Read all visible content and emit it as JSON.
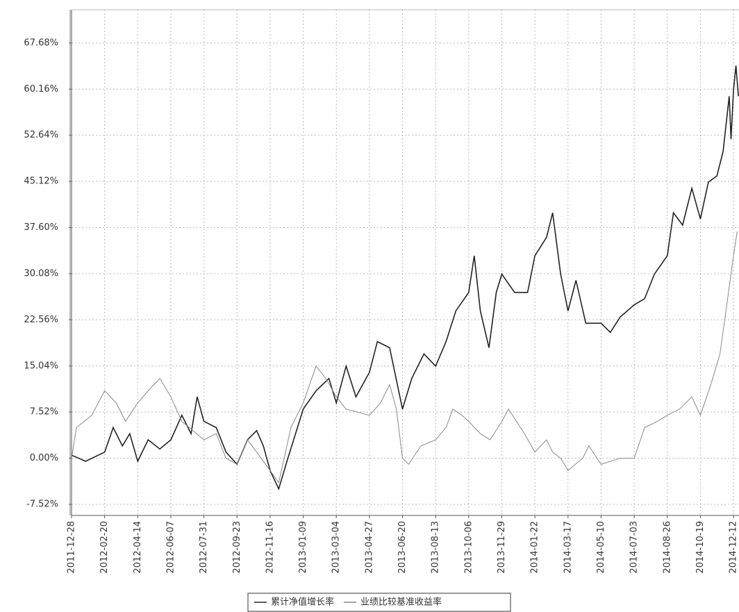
{
  "chart_data": {
    "type": "line",
    "xlim": [
      "2011-12-28",
      "2014-12-21"
    ],
    "xticks": [
      "2011-12-28",
      "2012-02-20",
      "2012-04-14",
      "2012-06-07",
      "2012-07-31",
      "2012-09-23",
      "2012-11-16",
      "2013-01-09",
      "2013-03-04",
      "2013-04-27",
      "2013-06-20",
      "2013-08-13",
      "2013-10-06",
      "2013-11-29",
      "2014-01-22",
      "2014-03-17",
      "2014-05-10",
      "2014-07-03",
      "2014-08-26",
      "2014-10-19",
      "2014-12-12"
    ],
    "ylim": [
      -9.33,
      73.1
    ],
    "yticks": [
      {
        "value": -7.52,
        "label": "-7.52%"
      },
      {
        "value": 0,
        "label": "0.00%"
      },
      {
        "value": 7.52,
        "label": "7.52%"
      },
      {
        "value": 15.04,
        "label": "15.04%"
      },
      {
        "value": 22.56,
        "label": "22.56%"
      },
      {
        "value": 30.08,
        "label": "30.08%"
      },
      {
        "value": 37.6,
        "label": "37.60%"
      },
      {
        "value": 45.12,
        "label": "45.12%"
      },
      {
        "value": 52.64,
        "label": "52.64%"
      },
      {
        "value": 60.16,
        "label": "60.16%"
      },
      {
        "value": 67.68,
        "label": "67.68%"
      }
    ],
    "grid": true,
    "series": [
      {
        "name": "累计净值增长率",
        "color": "#222222",
        "x": [
          "2011-12-28",
          "2012-01-20",
          "2012-02-20",
          "2012-03-05",
          "2012-03-20",
          "2012-04-01",
          "2012-04-14",
          "2012-05-01",
          "2012-05-20",
          "2012-06-07",
          "2012-06-25",
          "2012-07-10",
          "2012-07-20",
          "2012-07-31",
          "2012-08-20",
          "2012-09-05",
          "2012-09-23",
          "2012-10-10",
          "2012-10-25",
          "2012-11-05",
          "2012-11-16",
          "2012-11-30",
          "2012-12-15",
          "2013-01-09",
          "2013-01-30",
          "2013-02-20",
          "2013-03-04",
          "2013-03-20",
          "2013-04-05",
          "2013-04-27",
          "2013-05-10",
          "2013-05-30",
          "2013-06-20",
          "2013-07-05",
          "2013-07-25",
          "2013-08-13",
          "2013-08-30",
          "2013-09-15",
          "2013-10-06",
          "2013-10-15",
          "2013-10-25",
          "2013-11-08",
          "2013-11-20",
          "2013-11-29",
          "2013-12-20",
          "2014-01-10",
          "2014-01-22",
          "2014-02-10",
          "2014-02-20",
          "2014-03-05",
          "2014-03-17",
          "2014-03-30",
          "2014-04-15",
          "2014-05-10",
          "2014-05-25",
          "2014-06-10",
          "2014-07-03",
          "2014-07-20",
          "2014-08-05",
          "2014-08-26",
          "2014-09-05",
          "2014-09-20",
          "2014-10-05",
          "2014-10-19",
          "2014-11-01",
          "2014-11-15",
          "2014-11-25",
          "2014-12-05",
          "2014-12-08",
          "2014-12-12",
          "2014-12-16",
          "2014-12-20"
        ],
        "values": [
          0.5,
          -0.5,
          1,
          5,
          2,
          4,
          -0.5,
          3,
          1.5,
          3,
          7,
          4,
          10,
          6,
          5,
          1,
          -1,
          3,
          4.5,
          2,
          -2,
          -5,
          0,
          8,
          11,
          13,
          9,
          15,
          10,
          14,
          19,
          18,
          8,
          13,
          17,
          15,
          19,
          24,
          27,
          33,
          24,
          18,
          27,
          30,
          27,
          27,
          33,
          36,
          40,
          30,
          24,
          29,
          22,
          22,
          20.5,
          23,
          25,
          26,
          30,
          33,
          40,
          38,
          44,
          39,
          45,
          46,
          50,
          59,
          52,
          60,
          64,
          59
        ]
      },
      {
        "name": "业绩比较基准收益率",
        "color": "#888888",
        "x": [
          "2011-12-28",
          "2012-01-05",
          "2012-01-30",
          "2012-02-20",
          "2012-03-10",
          "2012-03-25",
          "2012-04-14",
          "2012-05-01",
          "2012-05-20",
          "2012-06-07",
          "2012-06-25",
          "2012-07-31",
          "2012-08-20",
          "2012-09-05",
          "2012-09-23",
          "2012-10-10",
          "2012-10-25",
          "2012-11-16",
          "2012-11-30",
          "2012-12-20",
          "2013-01-09",
          "2013-01-30",
          "2013-02-15",
          "2013-03-04",
          "2013-03-20",
          "2013-04-27",
          "2013-05-15",
          "2013-05-30",
          "2013-06-10",
          "2013-06-20",
          "2013-06-30",
          "2013-07-20",
          "2013-08-13",
          "2013-08-30",
          "2013-09-10",
          "2013-09-25",
          "2013-10-06",
          "2013-10-25",
          "2013-11-10",
          "2013-11-29",
          "2013-12-10",
          "2014-01-05",
          "2014-01-22",
          "2014-02-10",
          "2014-02-20",
          "2014-03-05",
          "2014-03-17",
          "2014-04-10",
          "2014-04-20",
          "2014-05-10",
          "2014-06-10",
          "2014-07-03",
          "2014-07-20",
          "2014-08-10",
          "2014-08-26",
          "2014-09-15",
          "2014-10-05",
          "2014-10-19",
          "2014-11-05",
          "2014-11-20",
          "2014-12-01",
          "2014-12-12",
          "2014-12-18"
        ],
        "values": [
          0,
          5,
          7,
          11,
          9,
          6,
          9,
          11,
          13,
          10,
          6,
          3,
          4,
          0,
          -1,
          3,
          1,
          -2,
          -4,
          5,
          9,
          15,
          13,
          10,
          8,
          7,
          9,
          12,
          8,
          0,
          -1,
          2,
          3,
          5,
          8,
          7,
          6,
          4,
          3,
          6,
          8,
          4,
          1,
          3,
          1,
          0,
          -2,
          0,
          2,
          -1,
          0,
          0,
          5,
          6,
          7,
          8,
          10,
          7,
          12,
          17,
          25,
          33,
          37
        ]
      }
    ]
  }
}
